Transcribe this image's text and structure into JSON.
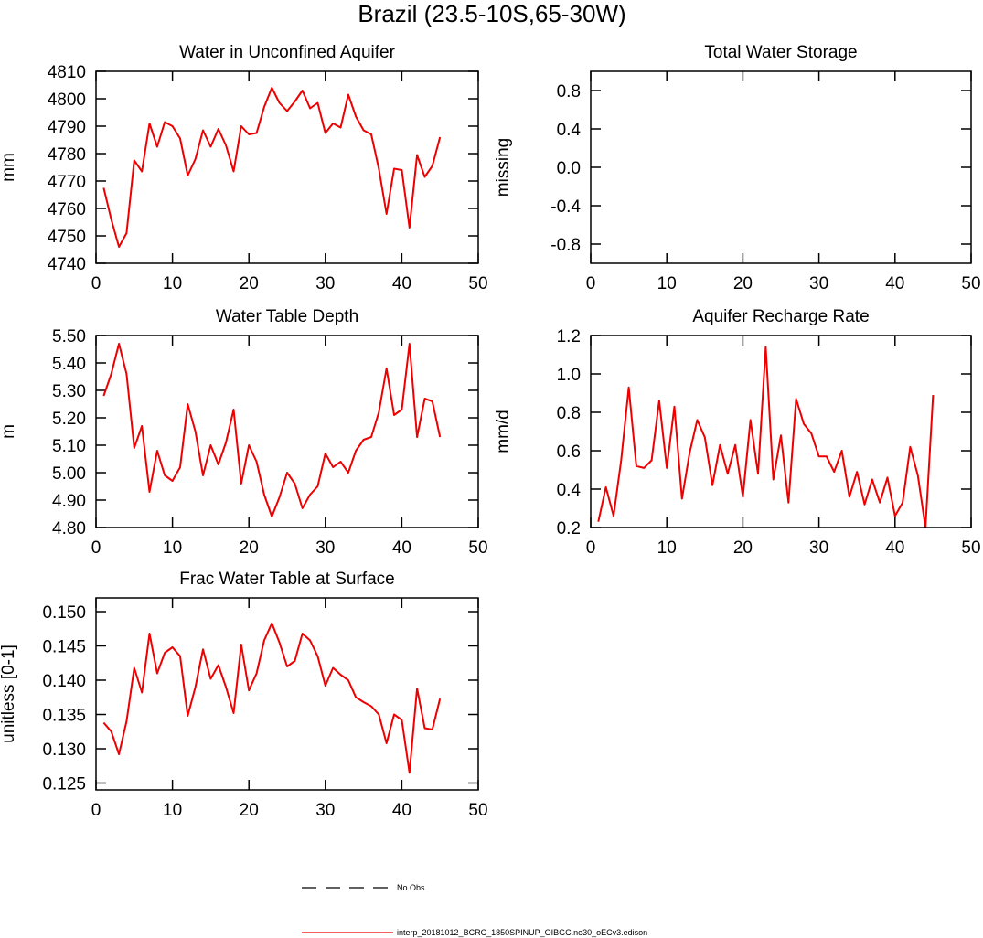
{
  "title": "Brazil (23.5-10S,65-30W)",
  "series_color": "#ee0000",
  "chart_data": [
    {
      "type": "line",
      "title": "Water in Unconfined Aquifer",
      "ylabel": "mm",
      "xlim": [
        0,
        50
      ],
      "xticks": [
        0,
        10,
        20,
        30,
        40,
        50
      ],
      "ylim": [
        4740,
        4810
      ],
      "yticks": [
        4740,
        4750,
        4760,
        4770,
        4780,
        4790,
        4800,
        4810
      ],
      "ytick_labels": [
        "4740",
        "4750",
        "4760",
        "4770",
        "4780",
        "4790",
        "4800",
        "4810"
      ],
      "x": [
        1,
        2,
        3,
        4,
        5,
        6,
        7,
        8,
        9,
        10,
        11,
        12,
        13,
        14,
        15,
        16,
        17,
        18,
        19,
        20,
        21,
        22,
        23,
        24,
        25,
        26,
        27,
        28,
        29,
        30,
        31,
        32,
        33,
        34,
        35,
        36,
        37,
        38,
        39,
        40,
        41,
        42,
        43,
        44,
        45
      ],
      "values": [
        4767.5,
        4756,
        4746,
        4751,
        4777.5,
        4773.5,
        4791,
        4782.5,
        4791.5,
        4790,
        4785.5,
        4772,
        4778,
        4788.5,
        4782.5,
        4789,
        4783,
        4773.5,
        4790,
        4787,
        4787.5,
        4797,
        4804,
        4798.5,
        4795.5,
        4799,
        4803,
        4796.5,
        4798.5,
        4787.5,
        4791,
        4789.5,
        4801.5,
        4793.5,
        4788.5,
        4787,
        4774.5,
        4758,
        4774.5,
        4774,
        4753,
        4779.5,
        4771.5,
        4775.5,
        4786
      ]
    },
    {
      "type": "line",
      "title": "Total Water Storage",
      "ylabel": "missing",
      "xlim": [
        0,
        50
      ],
      "xticks": [
        0,
        10,
        20,
        30,
        40,
        50
      ],
      "ylim": [
        -1,
        1
      ],
      "yticks": [
        -0.8,
        -0.4,
        0,
        0.4,
        0.8
      ],
      "ytick_labels": [
        "-0.8",
        "-0.4",
        "0.0",
        "0.4",
        "0.8"
      ],
      "x": [],
      "values": []
    },
    {
      "type": "line",
      "title": "Water Table Depth",
      "ylabel": "m",
      "xlim": [
        0,
        50
      ],
      "xticks": [
        0,
        10,
        20,
        30,
        40,
        50
      ],
      "ylim": [
        4.8,
        5.5
      ],
      "yticks": [
        4.8,
        4.9,
        5.0,
        5.1,
        5.2,
        5.3,
        5.4,
        5.5
      ],
      "ytick_labels": [
        "4.80",
        "4.90",
        "5.00",
        "5.10",
        "5.20",
        "5.30",
        "5.40",
        "5.50"
      ],
      "x": [
        1,
        2,
        3,
        4,
        5,
        6,
        7,
        8,
        9,
        10,
        11,
        12,
        13,
        14,
        15,
        16,
        17,
        18,
        19,
        20,
        21,
        22,
        23,
        24,
        25,
        26,
        27,
        28,
        29,
        30,
        31,
        32,
        33,
        34,
        35,
        36,
        37,
        38,
        39,
        40,
        41,
        42,
        43,
        44,
        45
      ],
      "values": [
        5.28,
        5.36,
        5.47,
        5.36,
        5.09,
        5.17,
        4.93,
        5.08,
        4.99,
        4.97,
        5.02,
        5.25,
        5.15,
        4.99,
        5.1,
        5.03,
        5.11,
        5.23,
        4.96,
        5.1,
        5.04,
        4.92,
        4.84,
        4.91,
        5.0,
        4.96,
        4.87,
        4.92,
        4.95,
        5.07,
        5.02,
        5.04,
        5.0,
        5.08,
        5.12,
        5.13,
        5.22,
        5.38,
        5.21,
        5.23,
        5.47,
        5.13,
        5.27,
        5.26,
        5.13
      ]
    },
    {
      "type": "line",
      "title": "Aquifer Recharge Rate",
      "ylabel": "mm/d",
      "xlim": [
        0,
        50
      ],
      "xticks": [
        0,
        10,
        20,
        30,
        40,
        50
      ],
      "ylim": [
        0.2,
        1.2
      ],
      "yticks": [
        0.2,
        0.4,
        0.6,
        0.8,
        1.0,
        1.2
      ],
      "ytick_labels": [
        "0.2",
        "0.4",
        "0.6",
        "0.8",
        "1.0",
        "1.2"
      ],
      "x": [
        1,
        2,
        3,
        4,
        5,
        6,
        7,
        8,
        9,
        10,
        11,
        12,
        13,
        14,
        15,
        16,
        17,
        18,
        19,
        20,
        21,
        22,
        23,
        24,
        25,
        26,
        27,
        28,
        29,
        30,
        31,
        32,
        33,
        34,
        35,
        36,
        37,
        38,
        39,
        40,
        41,
        42,
        43,
        44,
        45
      ],
      "values": [
        0.23,
        0.41,
        0.26,
        0.55,
        0.93,
        0.52,
        0.51,
        0.55,
        0.86,
        0.51,
        0.83,
        0.35,
        0.59,
        0.76,
        0.67,
        0.42,
        0.63,
        0.48,
        0.63,
        0.36,
        0.76,
        0.48,
        1.14,
        0.45,
        0.68,
        0.33,
        0.87,
        0.74,
        0.69,
        0.57,
        0.57,
        0.49,
        0.6,
        0.36,
        0.49,
        0.32,
        0.45,
        0.33,
        0.46,
        0.26,
        0.33,
        0.62,
        0.47,
        0.2,
        0.89
      ]
    },
    {
      "type": "line",
      "title": "Frac Water Table at Surface",
      "ylabel": "unitless [0-1]",
      "xlim": [
        0,
        50
      ],
      "xticks": [
        0,
        10,
        20,
        30,
        40,
        50
      ],
      "ylim": [
        0.124,
        0.152
      ],
      "yticks": [
        0.125,
        0.13,
        0.135,
        0.14,
        0.145,
        0.15
      ],
      "ytick_labels": [
        "0.125",
        "0.130",
        "0.135",
        "0.140",
        "0.145",
        "0.150"
      ],
      "x": [
        1,
        2,
        3,
        4,
        5,
        6,
        7,
        8,
        9,
        10,
        11,
        12,
        13,
        14,
        15,
        16,
        17,
        18,
        19,
        20,
        21,
        22,
        23,
        24,
        25,
        26,
        27,
        28,
        29,
        30,
        31,
        32,
        33,
        34,
        35,
        36,
        37,
        38,
        39,
        40,
        41,
        42,
        43,
        44,
        45
      ],
      "values": [
        0.1338,
        0.1325,
        0.1292,
        0.134,
        0.1418,
        0.1382,
        0.1468,
        0.141,
        0.144,
        0.1448,
        0.1435,
        0.1348,
        0.139,
        0.1445,
        0.1402,
        0.1422,
        0.139,
        0.1352,
        0.1452,
        0.1385,
        0.141,
        0.1458,
        0.1483,
        0.1455,
        0.142,
        0.1428,
        0.1468,
        0.1458,
        0.1435,
        0.1392,
        0.1418,
        0.1408,
        0.14,
        0.1375,
        0.1368,
        0.1362,
        0.135,
        0.1308,
        0.135,
        0.1342,
        0.1265,
        0.1388,
        0.133,
        0.1328,
        0.1373
      ]
    }
  ],
  "legend": {
    "obs_label": "No Obs",
    "model_label": "interp_20181012_BCRC_1850SPINUP_OIBGC.ne30_oECv3.edison"
  }
}
